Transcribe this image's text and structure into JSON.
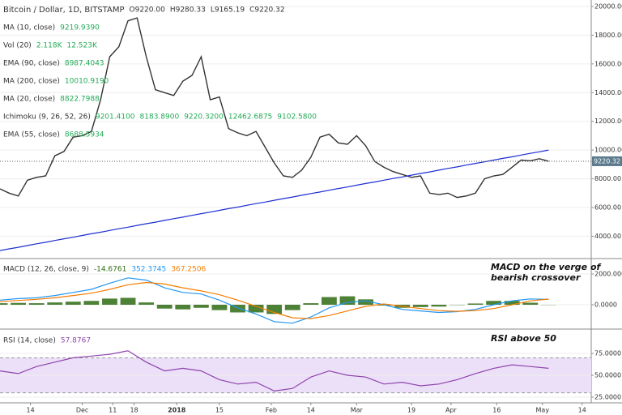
{
  "chart_data": [
    {
      "type": "line",
      "title": "Bitcoin / Dollar, 1D, BITSTAMP",
      "readouts": [
        "O9220.00",
        "H9280.33",
        "L9165.19",
        "C9220.32"
      ],
      "indicators": [
        {
          "name": "MA (10, close)",
          "readouts": [
            "9219.9390"
          ]
        },
        {
          "name": "Vol (20)",
          "readouts": [
            "2.118K",
            "12.523K"
          ]
        },
        {
          "name": "EMA (90, close)",
          "readouts": [
            "8987.4043"
          ]
        },
        {
          "name": "MA (200, close)",
          "readouts": [
            "10010.9190"
          ]
        },
        {
          "name": "MA (20, close)",
          "readouts": [
            "8822.7988"
          ]
        },
        {
          "name": "Ichimoku (9, 26, 52, 26)",
          "readouts": [
            "9201.4100",
            "8183.8900",
            "9220.3200",
            "12462.6875",
            "9102.5800"
          ]
        },
        {
          "name": "EMA (55, close)",
          "readouts": [
            "8688.5934"
          ]
        }
      ],
      "xlim": [
        -10,
        184
      ],
      "ylim": [
        2500,
        20450
      ],
      "yticks": [
        {
          "value": 4000,
          "label": "4000.00"
        },
        {
          "value": 6000,
          "label": "6000.00"
        },
        {
          "value": 8000,
          "label": "8000.00"
        },
        {
          "value": 10000,
          "label": "10000.00"
        },
        {
          "value": 12000,
          "label": "12000.00"
        },
        {
          "value": 14000,
          "label": "14000.00"
        },
        {
          "value": 16000,
          "label": "16000.00"
        },
        {
          "value": 18000,
          "label": "18000.00"
        },
        {
          "value": 20000,
          "label": "20000.00"
        }
      ],
      "price_line": {
        "value": 9220.32,
        "label": "9220.32"
      },
      "x": [
        -10,
        -7,
        -4,
        -1,
        2,
        5,
        8,
        11,
        14,
        17,
        20,
        23,
        26,
        29,
        32,
        35,
        38,
        41,
        44,
        47,
        50,
        53,
        56,
        59,
        62,
        65,
        68,
        71,
        74,
        77,
        80,
        83,
        86,
        89,
        92,
        95,
        98,
        101,
        104,
        107,
        110,
        113,
        116,
        119,
        122,
        125,
        128,
        131,
        134,
        137,
        140,
        143,
        146,
        149,
        152,
        155,
        158,
        161,
        164,
        167,
        170
      ],
      "series": [
        {
          "name": "Bitcoin / Dollar",
          "color": "#333333",
          "values": [
            7300,
            7000,
            6800,
            7900,
            8100,
            8200,
            9600,
            9900,
            10900,
            11000,
            11300,
            13500,
            16500,
            17200,
            19000,
            19200,
            16500,
            14200,
            14000,
            13800,
            14800,
            15200,
            16500,
            13500,
            13700,
            11500,
            11200,
            11000,
            11300,
            10200,
            9100,
            8200,
            8100,
            8600,
            9500,
            10900,
            11100,
            10500,
            10400,
            11000,
            10300,
            9200,
            8800,
            8500,
            8300,
            8100,
            8200,
            7000,
            6900,
            7000,
            6700,
            6800,
            7000,
            8000,
            8200,
            8300,
            8800,
            9300,
            9250,
            9400,
            9220
          ]
        },
        {
          "name": "MA (200, close)",
          "color": "#1c2fd1",
          "values": [
            3000,
            3120,
            3230,
            3350,
            3470,
            3580,
            3700,
            3820,
            3930,
            4050,
            4170,
            4280,
            4400,
            4520,
            4630,
            4750,
            4870,
            4980,
            5100,
            5220,
            5330,
            5450,
            5570,
            5680,
            5800,
            5920,
            6030,
            6150,
            6270,
            6380,
            6500,
            6620,
            6730,
            6850,
            6970,
            7080,
            7200,
            7320,
            7430,
            7550,
            7670,
            7780,
            7900,
            8020,
            8130,
            8250,
            8370,
            8480,
            8600,
            8720,
            8830,
            8950,
            9070,
            9180,
            9300,
            9420,
            9530,
            9650,
            9770,
            9880,
            10000
          ]
        }
      ]
    },
    {
      "type": "line",
      "title": "MACD (12, 26, close, 9)",
      "readouts": [
        "-14.6761",
        "352.3745",
        "367.2506"
      ],
      "annotation": [
        "MACD on the verge of",
        "bearish crossover"
      ],
      "xlim": [
        -10,
        184
      ],
      "ylim": [
        -1530,
        2950
      ],
      "yticks": [
        {
          "value": 0,
          "label": "0.0000"
        },
        {
          "value": 2000,
          "label": "2000.0000"
        }
      ],
      "x": [
        -10,
        -4,
        2,
        8,
        14,
        20,
        26,
        32,
        38,
        44,
        50,
        56,
        62,
        68,
        74,
        80,
        86,
        92,
        98,
        104,
        110,
        116,
        122,
        128,
        134,
        140,
        146,
        152,
        158,
        164,
        170
      ],
      "series": [
        {
          "color": "#2e6b12",
          "style": "histogram",
          "values": [
            100,
            120,
            100,
            150,
            200,
            250,
            400,
            450,
            150,
            -250,
            -300,
            -200,
            -350,
            -500,
            -500,
            -600,
            -350,
            100,
            500,
            550,
            350,
            -50,
            -200,
            -150,
            -120,
            -20,
            80,
            250,
            250,
            130,
            -15
          ]
        },
        {
          "color": "#2196f3",
          "values": [
            300,
            400,
            450,
            600,
            800,
            1000,
            1400,
            1750,
            1600,
            1100,
            800,
            700,
            300,
            -200,
            -600,
            -1100,
            -1200,
            -800,
            -200,
            150,
            250,
            0,
            -300,
            -400,
            -500,
            -450,
            -300,
            0,
            250,
            380,
            352
          ]
        },
        {
          "color": "#f57c00",
          "values": [
            200,
            280,
            350,
            450,
            600,
            750,
            1000,
            1300,
            1450,
            1350,
            1100,
            900,
            650,
            300,
            -100,
            -500,
            -850,
            -900,
            -700,
            -400,
            -100,
            50,
            -100,
            -250,
            -380,
            -430,
            -380,
            -250,
            0,
            250,
            367
          ]
        }
      ]
    },
    {
      "type": "line",
      "title": "RSI (14, close)",
      "readouts": [
        "57.8767"
      ],
      "annotation": [
        "RSI above 50"
      ],
      "band": [
        30,
        70
      ],
      "band_color": "#ecdff8",
      "xlim": [
        -10,
        184
      ],
      "ylim": [
        18.5,
        101
      ],
      "yticks": [
        {
          "value": 25,
          "label": "25.0000"
        },
        {
          "value": 50,
          "label": "50.0000"
        },
        {
          "value": 75,
          "label": "75.0000"
        }
      ],
      "xticks": [
        {
          "value": 0,
          "label": "14"
        },
        {
          "value": 17,
          "label": "Dec"
        },
        {
          "value": 27,
          "label": "11"
        },
        {
          "value": 34,
          "label": "18"
        },
        {
          "value": 48,
          "label": "2018"
        },
        {
          "value": 62,
          "label": "15"
        },
        {
          "value": 79,
          "label": "Feb"
        },
        {
          "value": 92,
          "label": "14"
        },
        {
          "value": 107,
          "label": "Mar"
        },
        {
          "value": 125,
          "label": "19"
        },
        {
          "value": 138,
          "label": "Apr"
        },
        {
          "value": 153,
          "label": "16"
        },
        {
          "value": 168,
          "label": "May"
        },
        {
          "value": 181,
          "label": "14"
        }
      ],
      "x": [
        -10,
        -4,
        2,
        8,
        14,
        20,
        26,
        32,
        38,
        44,
        50,
        56,
        62,
        68,
        74,
        80,
        86,
        92,
        98,
        104,
        110,
        116,
        122,
        128,
        134,
        140,
        146,
        152,
        158,
        164,
        170
      ],
      "series": [
        {
          "color": "#8e44ad",
          "values": [
            55,
            52,
            60,
            65,
            70,
            72,
            74,
            78,
            65,
            55,
            58,
            55,
            45,
            40,
            42,
            32,
            35,
            48,
            55,
            50,
            48,
            40,
            42,
            38,
            40,
            45,
            52,
            58,
            62,
            60,
            58
          ]
        }
      ]
    }
  ]
}
